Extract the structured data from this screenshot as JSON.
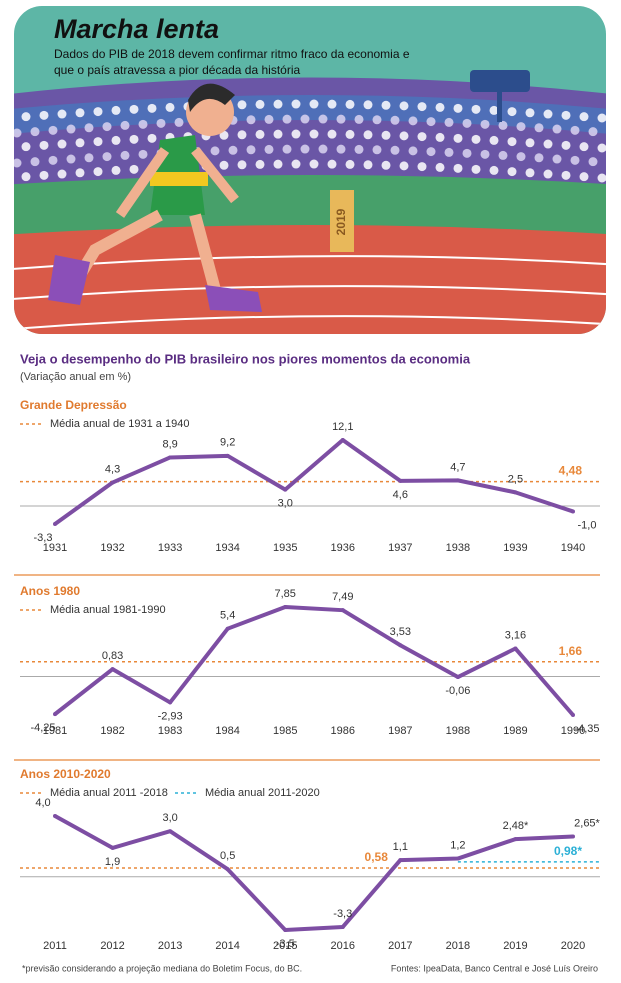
{
  "header": {
    "title": "Marcha lenta",
    "subtitle": "Dados do PIB de 2018 devem confirmar ritmo fraco da economia e que o país atravessa a pior década da história",
    "illustration_label": "2019"
  },
  "intro": {
    "title": "Veja o desempenho do PIB brasileiro nos piores momentos da economia",
    "unit": "(Variação anual em %)"
  },
  "chart_data": [
    {
      "type": "line",
      "title": "Grande Depressão",
      "color": "#7d4ea3",
      "categories": [
        "1931",
        "1932",
        "1933",
        "1934",
        "1935",
        "1936",
        "1937",
        "1938",
        "1939",
        "1940"
      ],
      "values": [
        -3.3,
        4.3,
        8.9,
        9.2,
        3.0,
        12.1,
        4.6,
        4.7,
        2.5,
        -1.0
      ],
      "value_labels": [
        "-3,3",
        "4,3",
        "8,9",
        "9,2",
        "3,0",
        "12,1",
        "4,6",
        "4,7",
        "2,5",
        "-1,0"
      ],
      "averages": [
        {
          "name": "Média anual de 1931 a 1940",
          "value": 4.48,
          "value_label": "4,48",
          "color": "#e8883a"
        }
      ]
    },
    {
      "type": "line",
      "title": "Anos 1980",
      "color": "#7d4ea3",
      "categories": [
        "1981",
        "1982",
        "1983",
        "1984",
        "1985",
        "1986",
        "1987",
        "1988",
        "1989",
        "1990"
      ],
      "values": [
        -4.25,
        0.83,
        -2.93,
        5.4,
        7.85,
        7.49,
        3.53,
        -0.06,
        3.16,
        -4.35
      ],
      "value_labels": [
        "-4,25",
        "0,83",
        "-2,93",
        "5,4",
        "7,85",
        "7,49",
        "3,53",
        "-0,06",
        "3,16",
        "-4,35"
      ],
      "averages": [
        {
          "name": "Média anual 1981-1990",
          "value": 1.66,
          "value_label": "1,66",
          "color": "#e8883a"
        }
      ]
    },
    {
      "type": "line",
      "title": "Anos 2010-2020",
      "color": "#7d4ea3",
      "categories": [
        "2011",
        "2012",
        "2013",
        "2014",
        "2015",
        "2016",
        "2017",
        "2018",
        "2019",
        "2020"
      ],
      "values": [
        4.0,
        1.9,
        3.0,
        0.5,
        -3.5,
        -3.3,
        1.1,
        1.2,
        2.48,
        2.65
      ],
      "value_labels": [
        "4,0",
        "1,9",
        "3,0",
        "0,5",
        "-3,5",
        "-3,3",
        "1,1",
        "1,2",
        "2,48*",
        "2,65*"
      ],
      "averages": [
        {
          "name": "Média anual 2011 -2018",
          "value": 0.58,
          "value_label": "0,58",
          "color": "#e8883a"
        },
        {
          "name": "Média anual 2011-2020",
          "value": 0.98,
          "value_label": "0,98*",
          "color": "#2bb0d6",
          "start": "2018"
        }
      ]
    }
  ],
  "notes": {
    "footnote": "*previsão considerando a projeção mediana do Boletim Focus, do BC.",
    "source": "Fontes: IpeaData, Banco Central e José Luís Oreiro"
  }
}
